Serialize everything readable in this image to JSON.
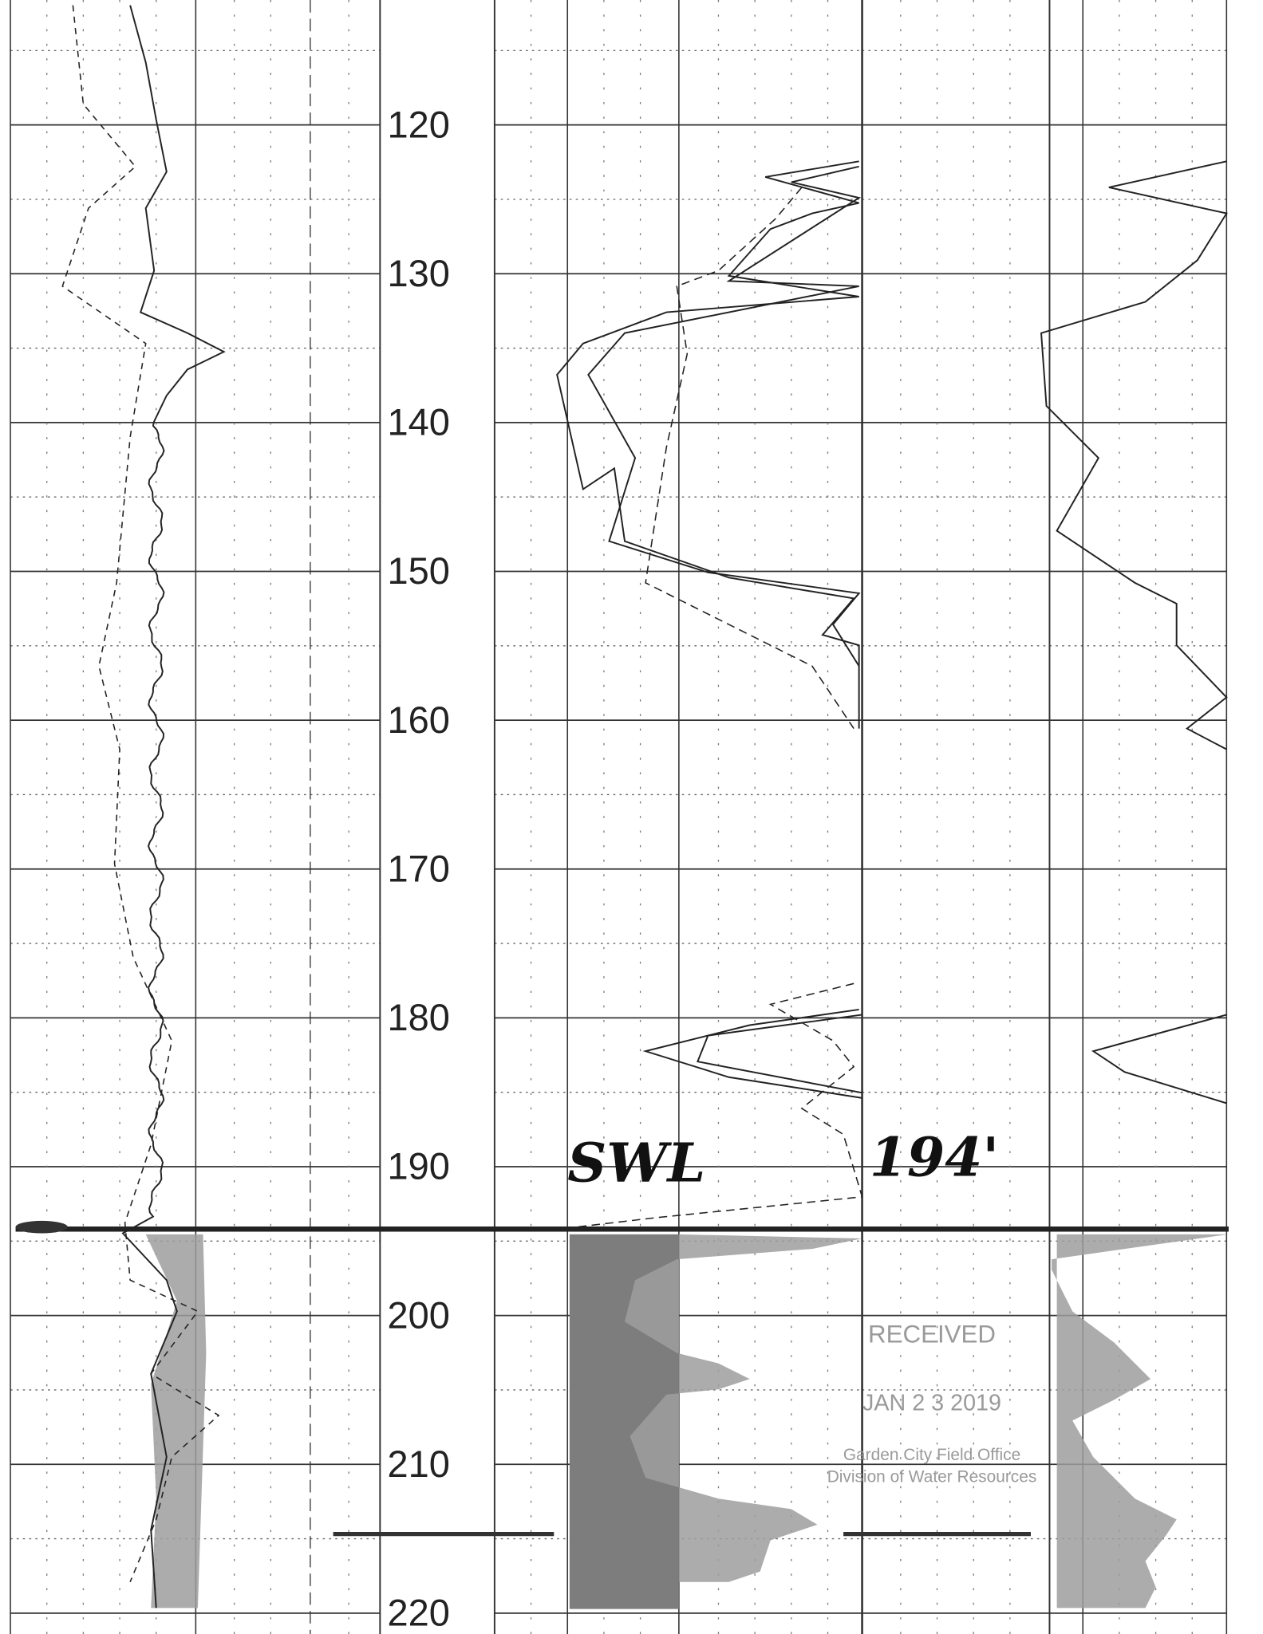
{
  "depth_labels": [
    "120",
    "130",
    "140",
    "150",
    "160",
    "170",
    "180",
    "190",
    "200",
    "210",
    "220"
  ],
  "annotations": {
    "static_water_level": "SWL",
    "depth": "194'"
  },
  "stamp": {
    "title": "RECEIVED",
    "date": "JAN 2 3 2019",
    "office": "Garden City Field Office",
    "division": "Division of Water Resources"
  }
}
